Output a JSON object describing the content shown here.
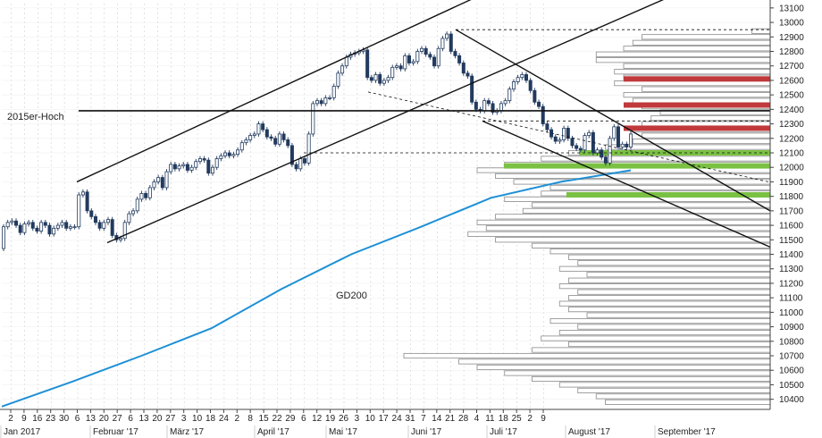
{
  "chart_data": {
    "type": "candlestick",
    "title": "",
    "xlabel": "",
    "ylabel": "",
    "ylim": [
      10330,
      13130
    ],
    "y_ticks": [
      10400,
      10500,
      10600,
      10700,
      10800,
      10900,
      11000,
      11100,
      11200,
      11300,
      11400,
      11500,
      11600,
      11700,
      11800,
      11900,
      12000,
      12100,
      12200,
      12300,
      12400,
      12500,
      12600,
      12700,
      12800,
      12900,
      13000,
      13100
    ],
    "x_day_ticks": [
      "2",
      "9",
      "16",
      "23",
      "30",
      "6",
      "13",
      "20",
      "27",
      "6",
      "13",
      "20",
      "27",
      "3",
      "10",
      "18",
      "24",
      "2",
      "8",
      "15",
      "22",
      "29",
      "6",
      "12",
      "19",
      "26",
      "3",
      "10",
      "17",
      "24",
      "31",
      "7",
      "14",
      "21",
      "28",
      "4",
      "11",
      "18",
      "25",
      "2",
      "9"
    ],
    "x_month_labels": [
      "Jan 2017",
      "Februar '17",
      "März '17",
      "April '17",
      "Mai '17",
      "Juni '17",
      "Juli '17",
      "August '17",
      "September '17"
    ],
    "annotations": {
      "high_2015_label": "2015er-Hoch",
      "high_2015_level": 12390,
      "ma_label": "GD200"
    },
    "price_closes": [
      11590,
      11620,
      11630,
      11600,
      11550,
      11610,
      11620,
      11580,
      11560,
      11620,
      11600,
      11540,
      11580,
      11600,
      11620,
      11580,
      11590,
      11590,
      11810,
      11830,
      11700,
      11660,
      11620,
      11580,
      11620,
      11640,
      11530,
      11500,
      11510,
      11620,
      11680,
      11700,
      11780,
      11820,
      11790,
      11860,
      11900,
      11930,
      11860,
      11970,
      12020,
      11990,
      12010,
      12020,
      11980,
      12000,
      12040,
      12060,
      12050,
      11960,
      12000,
      12060,
      12080,
      12100,
      12080,
      12090,
      12120,
      12170,
      12190,
      12220,
      12230,
      12300,
      12260,
      12210,
      12200,
      12160,
      12230,
      12190,
      12150,
      12020,
      11990,
      12060,
      12030,
      12230,
      12440,
      12460,
      12440,
      12480,
      12480,
      12560,
      12650,
      12700,
      12760,
      12780,
      12790,
      12800,
      12810,
      12620,
      12600,
      12640,
      12580,
      12600,
      12620,
      12690,
      12700,
      12680,
      12770,
      12720,
      12730,
      12800,
      12820,
      12780,
      12760,
      12700,
      12820,
      12890,
      12920,
      12800,
      12770,
      12720,
      12650,
      12630,
      12450,
      12400,
      12390,
      12460,
      12440,
      12380,
      12390,
      12440,
      12460,
      12540,
      12590,
      12620,
      12640,
      12600,
      12530,
      12450,
      12420,
      12300,
      12260,
      12210,
      12180,
      12190,
      12270,
      12200,
      12150,
      12130,
      12120,
      12220,
      12240,
      12100,
      12120,
      12070,
      12030,
      12200,
      12280,
      12140,
      12160,
      12140,
      12230
    ],
    "price_start_low": 11440,
    "gd200_values": [
      10350,
      10520,
      10700,
      10890,
      11160,
      11400,
      11590,
      11790,
      11900,
      11980
    ],
    "channel_up_upper": [
      [
        11900,
        13480
      ]
    ],
    "channel_up_lower": [
      [
        11480,
        12390
      ]
    ],
    "channel_down_upper": [
      [
        12950,
        11700
      ]
    ],
    "channel_down_lower": [
      [
        12320,
        11450
      ]
    ],
    "horizontal_lines": [
      {
        "level": 12950,
        "style": "dashed"
      },
      {
        "level": 12100,
        "style": "dashed"
      },
      {
        "level": 12320,
        "style": "dashed"
      }
    ],
    "zones": [
      {
        "level": 12610,
        "color": "#c0393b"
      },
      {
        "level": 12430,
        "color": "#c0393b"
      },
      {
        "level": 12270,
        "color": "#c0393b"
      },
      {
        "level": 12100,
        "color": "#7ac143"
      },
      {
        "level": 12010,
        "color": "#7ac143"
      },
      {
        "level": 11810,
        "color": "#7ac143"
      }
    ],
    "volume_profile": {
      "levels": [
        10380,
        10420,
        10460,
        10500,
        10540,
        10580,
        10620,
        10660,
        10700,
        10740,
        10780,
        10820,
        10860,
        10900,
        10940,
        10980,
        11020,
        11060,
        11100,
        11140,
        11180,
        11220,
        11260,
        11300,
        11340,
        11380,
        11420,
        11460,
        11500,
        11540,
        11580,
        11620,
        11660,
        11700,
        11740,
        11780,
        11820,
        11860,
        11900,
        11940,
        11980,
        12020,
        12060,
        12100,
        12140,
        12180,
        12220,
        12260,
        12300,
        12340,
        12380,
        12420,
        12460,
        12500,
        12540,
        12580,
        12620,
        12660,
        12700,
        12740,
        12780,
        12820,
        12860,
        12900,
        12940
      ],
      "values": [
        180,
        190,
        210,
        230,
        260,
        290,
        320,
        340,
        400,
        260,
        220,
        250,
        230,
        210,
        240,
        200,
        220,
        230,
        220,
        210,
        230,
        220,
        200,
        230,
        210,
        220,
        240,
        260,
        300,
        330,
        310,
        320,
        300,
        270,
        260,
        290,
        250,
        240,
        280,
        300,
        320,
        290,
        250,
        220,
        180,
        150,
        140,
        150,
        140,
        130,
        120,
        140,
        150,
        160,
        140,
        170,
        160,
        170,
        160,
        190,
        190,
        160,
        150,
        140,
        20
      ]
    },
    "colors": {
      "candle": "#223a5e",
      "gd200": "#1e90d6",
      "lines": "#111111",
      "profile_stroke": "#8a8a8a",
      "grid": "#cfcfcf"
    }
  }
}
